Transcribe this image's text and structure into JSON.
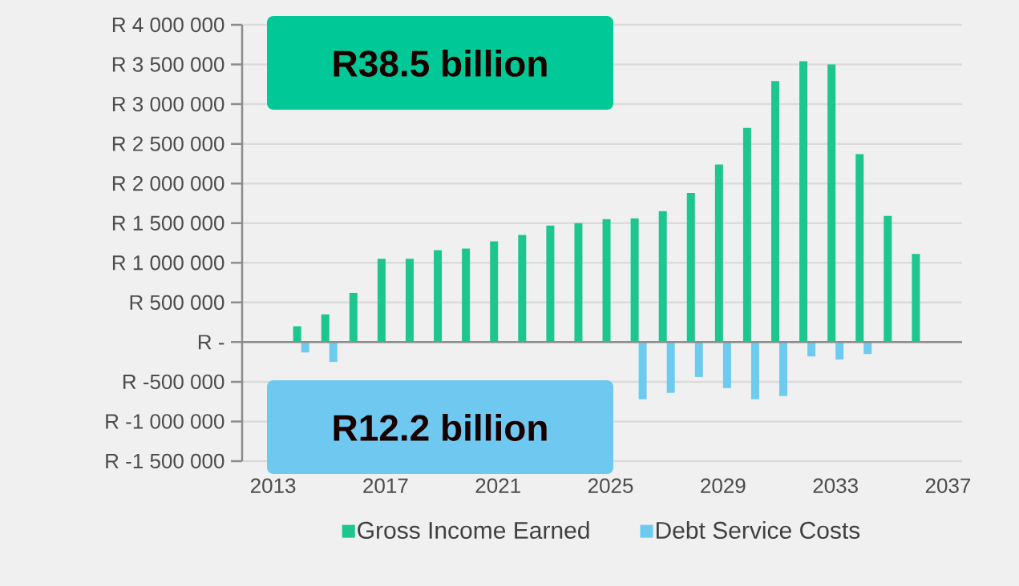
{
  "chart_data": {
    "type": "bar",
    "x": [
      2014,
      2015,
      2016,
      2017,
      2018,
      2019,
      2020,
      2021,
      2022,
      2023,
      2024,
      2025,
      2026,
      2027,
      2028,
      2029,
      2030,
      2031,
      2032,
      2033,
      2034,
      2035,
      2036
    ],
    "series": [
      {
        "name": "Gross Income Earned",
        "color": "#1dc58f",
        "values": [
          200000,
          350000,
          620000,
          1050000,
          1050000,
          1160000,
          1180000,
          1270000,
          1350000,
          1470000,
          1500000,
          1550000,
          1560000,
          1650000,
          1880000,
          2240000,
          2700000,
          3290000,
          3540000,
          3500000,
          2370000,
          1590000,
          1110000
        ]
      },
      {
        "name": "Debt Service Costs",
        "color": "#6dcbf0",
        "values": [
          -130000,
          -250000,
          null,
          null,
          null,
          null,
          null,
          null,
          null,
          null,
          null,
          null,
          -720000,
          -640000,
          -440000,
          -580000,
          -720000,
          -680000,
          -180000,
          -220000,
          -150000,
          null,
          null
        ]
      }
    ],
    "xlim": [
      2011.9,
      2037.5
    ],
    "xticks": [
      2013,
      2017,
      2021,
      2025,
      2029,
      2033,
      2037
    ],
    "ylim": [
      -1500000,
      4000000
    ],
    "yticks": [
      {
        "value": 4000000,
        "label": "R 4 000 000"
      },
      {
        "value": 3500000,
        "label": "R 3 500 000"
      },
      {
        "value": 3000000,
        "label": "R 3 000 000"
      },
      {
        "value": 2500000,
        "label": "R 2 500 000"
      },
      {
        "value": 2000000,
        "label": "R 2 000 000"
      },
      {
        "value": 1500000,
        "label": "R 1 500 000"
      },
      {
        "value": 1000000,
        "label": "R 1 000 000"
      },
      {
        "value": 500000,
        "label": "R 500 000"
      },
      {
        "value": 0,
        "label": "R -"
      },
      {
        "value": -500000,
        "label": "R -500 000"
      },
      {
        "value": -1000000,
        "label": "R -1 000 000"
      },
      {
        "value": -1500000,
        "label": "R -1 500 000"
      }
    ],
    "annotations": [
      "R38.5 billion",
      "R12.2 billion"
    ],
    "grid": "y",
    "legend": "bottom"
  }
}
